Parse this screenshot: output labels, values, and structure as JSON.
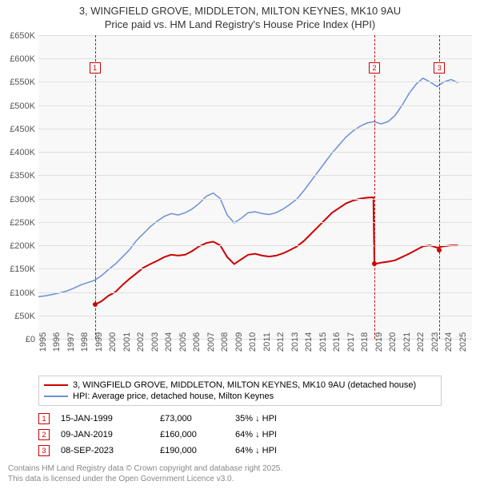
{
  "title": "3, WINGFIELD GROVE, MIDDLETON, MILTON KEYNES, MK10 9AU",
  "subtitle": "Price paid vs. HM Land Registry's House Price Index (HPI)",
  "chart": {
    "type": "line",
    "background_color": "#f8f8f8",
    "grid_color": "#e0e0e0",
    "text_color": "#555555",
    "xlim": [
      1995,
      2026
    ],
    "ylim": [
      0,
      650
    ],
    "units": "K",
    "y_prefix": "£",
    "ytick_step": 50,
    "xticks": [
      1995,
      1996,
      1997,
      1998,
      1999,
      2000,
      2001,
      2002,
      2003,
      2004,
      2005,
      2006,
      2007,
      2008,
      2009,
      2010,
      2011,
      2012,
      2013,
      2014,
      2015,
      2016,
      2017,
      2018,
      2019,
      2020,
      2021,
      2022,
      2023,
      2024,
      2025
    ],
    "series": [
      {
        "name": "3, WINGFIELD GROVE, MIDDLETON, MILTON KEYNES, MK10 9AU (detached house)",
        "color": "#cc0000",
        "line_width": 2,
        "points": [
          [
            1999.04,
            73
          ],
          [
            1999.5,
            80
          ],
          [
            2000,
            92
          ],
          [
            2000.5,
            100
          ],
          [
            2001,
            115
          ],
          [
            2001.5,
            128
          ],
          [
            2002,
            140
          ],
          [
            2002.5,
            152
          ],
          [
            2003,
            160
          ],
          [
            2003.5,
            167
          ],
          [
            2004,
            175
          ],
          [
            2004.5,
            180
          ],
          [
            2005,
            178
          ],
          [
            2005.5,
            180
          ],
          [
            2006,
            188
          ],
          [
            2006.5,
            198
          ],
          [
            2007,
            205
          ],
          [
            2007.5,
            208
          ],
          [
            2008,
            200
          ],
          [
            2008.5,
            175
          ],
          [
            2009,
            160
          ],
          [
            2009.5,
            170
          ],
          [
            2010,
            180
          ],
          [
            2010.5,
            182
          ],
          [
            2011,
            178
          ],
          [
            2011.5,
            176
          ],
          [
            2012,
            178
          ],
          [
            2012.5,
            183
          ],
          [
            2013,
            190
          ],
          [
            2013.5,
            198
          ],
          [
            2014,
            210
          ],
          [
            2014.5,
            225
          ],
          [
            2015,
            240
          ],
          [
            2015.5,
            255
          ],
          [
            2016,
            270
          ],
          [
            2016.5,
            280
          ],
          [
            2017,
            290
          ],
          [
            2017.5,
            296
          ],
          [
            2018,
            300
          ],
          [
            2018.5,
            302
          ],
          [
            2018.95,
            303
          ],
          [
            2019.02,
            160
          ],
          [
            2019.5,
            163
          ],
          [
            2020,
            165
          ],
          [
            2020.5,
            168
          ],
          [
            2021,
            175
          ],
          [
            2021.5,
            182
          ],
          [
            2022,
            190
          ],
          [
            2022.5,
            198
          ],
          [
            2023,
            200
          ],
          [
            2023.5,
            195
          ],
          [
            2024,
            198
          ],
          [
            2024.5,
            200
          ],
          [
            2025,
            200
          ]
        ]
      },
      {
        "name": "HPI: Average price, detached house, Milton Keynes",
        "color": "#6a8fd8",
        "line_width": 1.5,
        "points": [
          [
            1995,
            90
          ],
          [
            1995.5,
            92
          ],
          [
            1996,
            95
          ],
          [
            1996.5,
            98
          ],
          [
            1997,
            102
          ],
          [
            1997.5,
            108
          ],
          [
            1998,
            115
          ],
          [
            1998.5,
            120
          ],
          [
            1999,
            125
          ],
          [
            1999.5,
            135
          ],
          [
            2000,
            148
          ],
          [
            2000.5,
            160
          ],
          [
            2001,
            175
          ],
          [
            2001.5,
            190
          ],
          [
            2002,
            210
          ],
          [
            2002.5,
            225
          ],
          [
            2003,
            240
          ],
          [
            2003.5,
            252
          ],
          [
            2004,
            262
          ],
          [
            2004.5,
            268
          ],
          [
            2005,
            265
          ],
          [
            2005.5,
            270
          ],
          [
            2006,
            278
          ],
          [
            2006.5,
            290
          ],
          [
            2007,
            305
          ],
          [
            2007.5,
            312
          ],
          [
            2008,
            300
          ],
          [
            2008.5,
            265
          ],
          [
            2009,
            248
          ],
          [
            2009.5,
            258
          ],
          [
            2010,
            270
          ],
          [
            2010.5,
            272
          ],
          [
            2011,
            268
          ],
          [
            2011.5,
            266
          ],
          [
            2012,
            270
          ],
          [
            2012.5,
            278
          ],
          [
            2013,
            288
          ],
          [
            2013.5,
            300
          ],
          [
            2014,
            318
          ],
          [
            2014.5,
            338
          ],
          [
            2015,
            358
          ],
          [
            2015.5,
            378
          ],
          [
            2016,
            398
          ],
          [
            2016.5,
            415
          ],
          [
            2017,
            432
          ],
          [
            2017.5,
            445
          ],
          [
            2018,
            455
          ],
          [
            2018.5,
            462
          ],
          [
            2019,
            465
          ],
          [
            2019.5,
            460
          ],
          [
            2020,
            465
          ],
          [
            2020.5,
            478
          ],
          [
            2021,
            500
          ],
          [
            2021.5,
            525
          ],
          [
            2022,
            545
          ],
          [
            2022.5,
            558
          ],
          [
            2023,
            550
          ],
          [
            2023.5,
            540
          ],
          [
            2024,
            550
          ],
          [
            2024.5,
            555
          ],
          [
            2025,
            548
          ]
        ]
      }
    ],
    "sale_markers": [
      {
        "n": "1",
        "x": 1999.04,
        "y": 73,
        "label_y": 580
      },
      {
        "n": "2",
        "x": 2019.02,
        "y": 160,
        "label_y": 580
      },
      {
        "n": "3",
        "x": 2023.68,
        "y": 190,
        "label_y": 580
      }
    ]
  },
  "legend": [
    {
      "color": "#cc0000",
      "width": 2,
      "text": "3, WINGFIELD GROVE, MIDDLETON, MILTON KEYNES, MK10 9AU (detached house)"
    },
    {
      "color": "#6a8fd8",
      "width": 1.5,
      "text": "HPI: Average price, detached house, Milton Keynes"
    }
  ],
  "events": [
    {
      "n": "1",
      "date": "15-JAN-1999",
      "price": "£73,000",
      "delta": "35% ↓ HPI"
    },
    {
      "n": "2",
      "date": "09-JAN-2019",
      "price": "£160,000",
      "delta": "64% ↓ HPI"
    },
    {
      "n": "3",
      "date": "08-SEP-2023",
      "price": "£190,000",
      "delta": "64% ↓ HPI"
    }
  ],
  "footer1": "Contains HM Land Registry data © Crown copyright and database right 2025.",
  "footer2": "This data is licensed under the Open Government Licence v3.0."
}
